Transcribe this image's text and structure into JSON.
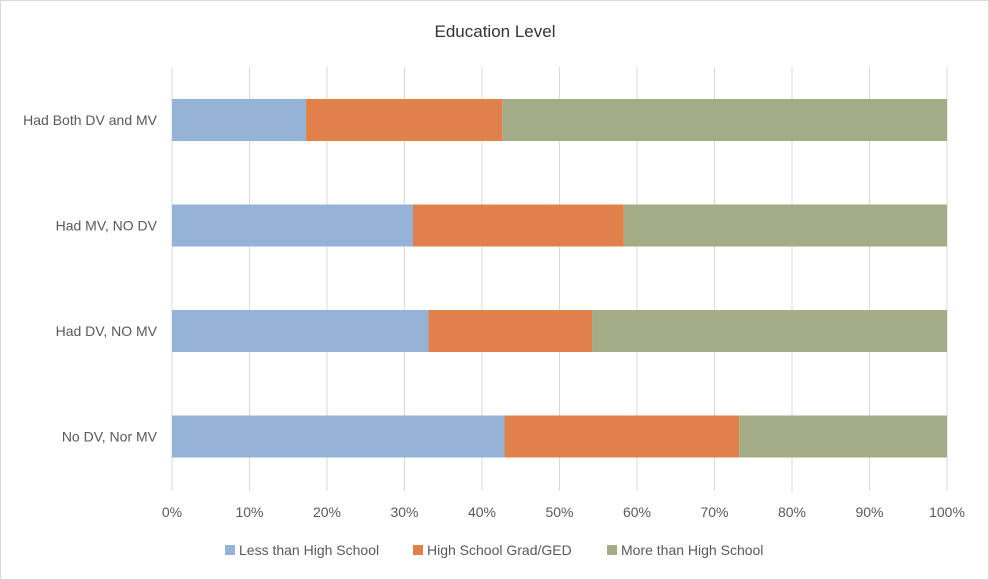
{
  "chart_data": {
    "type": "bar",
    "orientation": "horizontal",
    "stacked": "percent",
    "title": "Education Level",
    "xlabel": "",
    "ylabel": "",
    "xlim": [
      0,
      100
    ],
    "x_ticks": [
      "0%",
      "10%",
      "20%",
      "30%",
      "40%",
      "50%",
      "60%",
      "70%",
      "80%",
      "90%",
      "100%"
    ],
    "grid": "vertical",
    "legend_position": "bottom",
    "categories": [
      "Had Both DV and MV",
      "Had MV, NO DV",
      "Had DV, NO MV",
      "No DV, Nor MV"
    ],
    "series": [
      {
        "name": "Less than High School",
        "color": "#95b3d7",
        "values": [
          17.3,
          31.1,
          33.1,
          42.9
        ]
      },
      {
        "name": "High School Grad/GED",
        "color": "#e0804a",
        "values": [
          25.3,
          27.2,
          21.1,
          30.3
        ]
      },
      {
        "name": "More than High School",
        "color": "#a3ac84",
        "values": [
          57.4,
          41.7,
          45.8,
          26.8
        ]
      }
    ]
  }
}
